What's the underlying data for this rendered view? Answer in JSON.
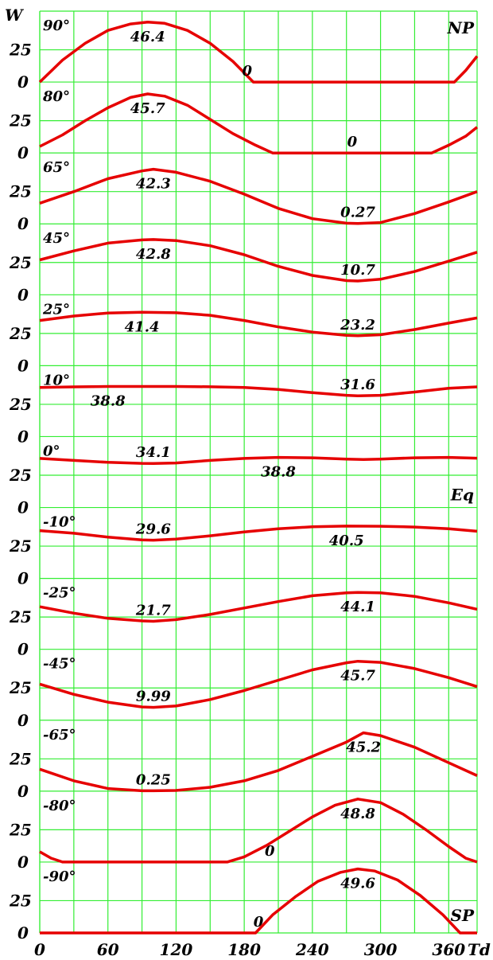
{
  "chart_data": {
    "type": "line",
    "xlabel": "Td",
    "ylabel": "W",
    "xlim": [
      0,
      385
    ],
    "x_ticks": [
      "0",
      "60",
      "120",
      "180",
      "240",
      "300",
      "360"
    ],
    "y_ticks": [
      "0",
      "25"
    ],
    "panel_ylim": [
      0,
      50
    ],
    "grid": true,
    "line_color": "#e60000",
    "grid_color": "#33ee33",
    "panels": [
      {
        "lat_label": "90°",
        "lat": 90,
        "tag": "NP",
        "max_label": "46.4",
        "min_label": "0",
        "points": [
          [
            0,
            0
          ],
          [
            20,
            17
          ],
          [
            40,
            30
          ],
          [
            60,
            40
          ],
          [
            80,
            45
          ],
          [
            95,
            46.4
          ],
          [
            110,
            45.5
          ],
          [
            130,
            40
          ],
          [
            150,
            30
          ],
          [
            170,
            16
          ],
          [
            188,
            0
          ],
          [
            365,
            0
          ],
          [
            375,
            9
          ],
          [
            385,
            20
          ]
        ]
      },
      {
        "lat_label": "80°",
        "lat": 80,
        "tag": "",
        "max_label": "45.7",
        "min_label": "0",
        "points": [
          [
            0,
            5
          ],
          [
            20,
            14
          ],
          [
            40,
            25
          ],
          [
            60,
            35
          ],
          [
            80,
            43
          ],
          [
            95,
            45.7
          ],
          [
            110,
            44
          ],
          [
            130,
            37
          ],
          [
            150,
            26
          ],
          [
            170,
            15
          ],
          [
            190,
            6
          ],
          [
            205,
            0
          ],
          [
            345,
            0
          ],
          [
            360,
            6
          ],
          [
            375,
            13
          ],
          [
            385,
            20
          ]
        ]
      },
      {
        "lat_label": "65°",
        "lat": 65,
        "tag": "",
        "max_label": "42.3",
        "min_label": "0.27",
        "points": [
          [
            0,
            16
          ],
          [
            30,
            25
          ],
          [
            60,
            35
          ],
          [
            90,
            41
          ],
          [
            100,
            42.3
          ],
          [
            120,
            40
          ],
          [
            150,
            33
          ],
          [
            180,
            23
          ],
          [
            210,
            12
          ],
          [
            240,
            4
          ],
          [
            270,
            0.5
          ],
          [
            280,
            0.3
          ],
          [
            300,
            1
          ],
          [
            330,
            8
          ],
          [
            360,
            17
          ],
          [
            385,
            25
          ]
        ]
      },
      {
        "lat_label": "45°",
        "lat": 45,
        "tag": "",
        "max_label": "42.8",
        "min_label": "10.7",
        "points": [
          [
            0,
            27
          ],
          [
            30,
            34
          ],
          [
            60,
            40
          ],
          [
            90,
            42.5
          ],
          [
            100,
            42.8
          ],
          [
            120,
            42
          ],
          [
            150,
            38
          ],
          [
            180,
            31
          ],
          [
            210,
            22
          ],
          [
            240,
            15
          ],
          [
            270,
            11
          ],
          [
            280,
            10.7
          ],
          [
            300,
            12
          ],
          [
            330,
            18
          ],
          [
            360,
            26
          ],
          [
            385,
            33
          ]
        ]
      },
      {
        "lat_label": "25°",
        "lat": 25,
        "tag": "",
        "max_label": "41.4",
        "min_label": "23.2",
        "points": [
          [
            0,
            35
          ],
          [
            30,
            38.5
          ],
          [
            60,
            40.8
          ],
          [
            90,
            41.4
          ],
          [
            120,
            41
          ],
          [
            150,
            39
          ],
          [
            180,
            35
          ],
          [
            210,
            30
          ],
          [
            240,
            26
          ],
          [
            270,
            23.5
          ],
          [
            280,
            23.2
          ],
          [
            300,
            24
          ],
          [
            330,
            28
          ],
          [
            360,
            33
          ],
          [
            385,
            37
          ]
        ]
      },
      {
        "lat_label": "10°",
        "lat": 10,
        "tag": "",
        "max_label": "38.8",
        "min_label": "31.6",
        "points": [
          [
            0,
            38
          ],
          [
            30,
            38.5
          ],
          [
            60,
            38.8
          ],
          [
            90,
            38.8
          ],
          [
            120,
            38.8
          ],
          [
            150,
            38.6
          ],
          [
            180,
            38
          ],
          [
            210,
            36.5
          ],
          [
            240,
            34
          ],
          [
            270,
            32
          ],
          [
            280,
            31.6
          ],
          [
            300,
            32
          ],
          [
            330,
            34.5
          ],
          [
            360,
            37.5
          ],
          [
            385,
            38.5
          ]
        ]
      },
      {
        "lat_label": "0°",
        "lat": 0,
        "tag": "Eq",
        "max_label": "38.8",
        "min_label": "34.1",
        "points": [
          [
            0,
            38
          ],
          [
            30,
            36.5
          ],
          [
            60,
            35
          ],
          [
            90,
            34.2
          ],
          [
            100,
            34.1
          ],
          [
            120,
            34.5
          ],
          [
            150,
            36.5
          ],
          [
            180,
            38
          ],
          [
            210,
            38.8
          ],
          [
            240,
            38.5
          ],
          [
            270,
            37.5
          ],
          [
            285,
            37.2
          ],
          [
            300,
            37.5
          ],
          [
            330,
            38.5
          ],
          [
            360,
            38.8
          ],
          [
            385,
            38.2
          ]
        ]
      },
      {
        "lat_label": "-10°",
        "lat": -10,
        "tag": "",
        "max_label": "40.5",
        "min_label": "29.6",
        "points": [
          [
            0,
            37
          ],
          [
            30,
            35
          ],
          [
            60,
            32
          ],
          [
            90,
            29.8
          ],
          [
            100,
            29.6
          ],
          [
            120,
            30.5
          ],
          [
            150,
            33
          ],
          [
            180,
            36
          ],
          [
            210,
            38.5
          ],
          [
            240,
            40
          ],
          [
            270,
            40.5
          ],
          [
            300,
            40.4
          ],
          [
            330,
            39.8
          ],
          [
            360,
            38.5
          ],
          [
            385,
            36.5
          ]
        ]
      },
      {
        "lat_label": "-25°",
        "lat": -25,
        "tag": "",
        "max_label": "44.1",
        "min_label": "21.7",
        "points": [
          [
            0,
            33
          ],
          [
            30,
            28
          ],
          [
            60,
            24
          ],
          [
            90,
            22
          ],
          [
            100,
            21.7
          ],
          [
            120,
            23
          ],
          [
            150,
            27
          ],
          [
            180,
            32
          ],
          [
            210,
            37
          ],
          [
            240,
            41.5
          ],
          [
            270,
            43.8
          ],
          [
            280,
            44.1
          ],
          [
            300,
            43.8
          ],
          [
            330,
            41
          ],
          [
            360,
            36
          ],
          [
            385,
            31
          ]
        ]
      },
      {
        "lat_label": "-45°",
        "lat": -45,
        "tag": "",
        "max_label": "45.7",
        "min_label": "9.99",
        "points": [
          [
            0,
            28
          ],
          [
            30,
            20
          ],
          [
            60,
            14
          ],
          [
            90,
            10.3
          ],
          [
            100,
            10
          ],
          [
            120,
            11
          ],
          [
            150,
            16
          ],
          [
            180,
            23
          ],
          [
            210,
            31
          ],
          [
            240,
            39
          ],
          [
            270,
            44.5
          ],
          [
            280,
            45.7
          ],
          [
            300,
            44.8
          ],
          [
            330,
            40
          ],
          [
            360,
            33
          ],
          [
            385,
            26
          ]
        ]
      },
      {
        "lat_label": "-65°",
        "lat": -65,
        "tag": "",
        "max_label": "45.2",
        "min_label": "0.25",
        "points": [
          [
            0,
            17
          ],
          [
            30,
            8
          ],
          [
            60,
            2
          ],
          [
            90,
            0.3
          ],
          [
            100,
            0.25
          ],
          [
            120,
            0.5
          ],
          [
            150,
            3
          ],
          [
            180,
            8
          ],
          [
            210,
            16
          ],
          [
            240,
            27
          ],
          [
            270,
            38
          ],
          [
            285,
            45.2
          ],
          [
            300,
            43
          ],
          [
            330,
            34
          ],
          [
            360,
            22
          ],
          [
            385,
            12
          ]
        ]
      },
      {
        "lat_label": "-80°",
        "lat": -80,
        "tag": "",
        "max_label": "48.8",
        "min_label": "0",
        "points": [
          [
            0,
            8
          ],
          [
            10,
            3
          ],
          [
            20,
            0
          ],
          [
            165,
            0
          ],
          [
            180,
            4
          ],
          [
            200,
            13
          ],
          [
            220,
            24
          ],
          [
            240,
            35
          ],
          [
            260,
            44
          ],
          [
            280,
            48.8
          ],
          [
            300,
            46
          ],
          [
            320,
            37
          ],
          [
            340,
            25
          ],
          [
            360,
            12
          ],
          [
            375,
            3
          ],
          [
            385,
            0
          ]
        ]
      },
      {
        "lat_label": "-90°",
        "lat": -90,
        "tag": "SP",
        "max_label": "49.6",
        "min_label": "0",
        "points": [
          [
            0,
            0
          ],
          [
            190,
            0
          ],
          [
            205,
            14
          ],
          [
            225,
            28
          ],
          [
            245,
            40
          ],
          [
            265,
            47
          ],
          [
            280,
            49.6
          ],
          [
            295,
            48
          ],
          [
            315,
            41
          ],
          [
            335,
            29
          ],
          [
            355,
            14
          ],
          [
            370,
            0
          ],
          [
            385,
            0
          ]
        ]
      }
    ]
  }
}
